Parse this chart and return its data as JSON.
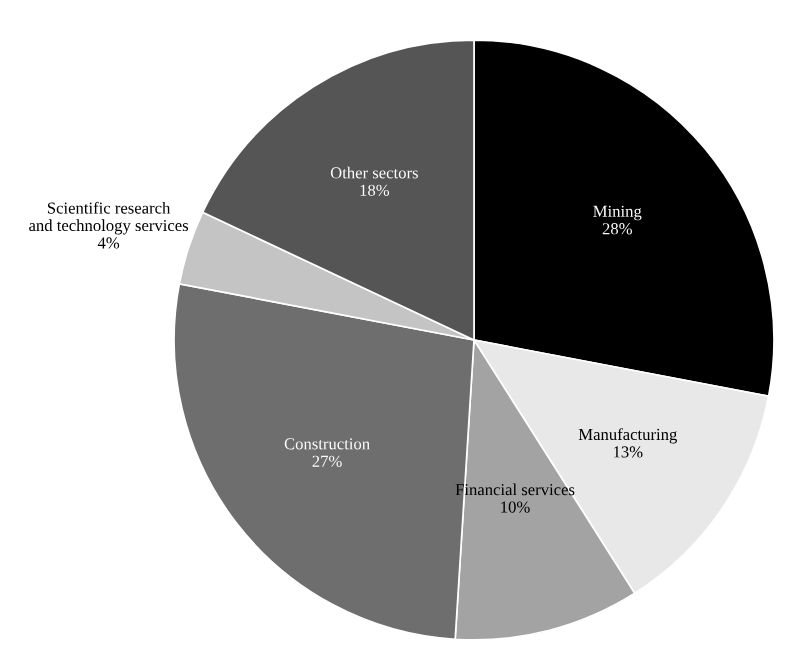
{
  "chart_data": {
    "type": "pie",
    "categories": [
      "Mining",
      "Manufacturing",
      "Financial services",
      "Construction",
      "Scientific research\nand technology services",
      "Other sectors"
    ],
    "values": [
      28,
      13,
      10,
      27,
      4,
      18
    ],
    "value_labels": [
      "28%",
      "13%",
      "10%",
      "27%",
      "4%",
      "18%"
    ],
    "colors": [
      "#000000",
      "#e8e8e8",
      "#a3a3a3",
      "#6e6e6e",
      "#c4c4c4",
      "#555555"
    ],
    "legend": false
  }
}
